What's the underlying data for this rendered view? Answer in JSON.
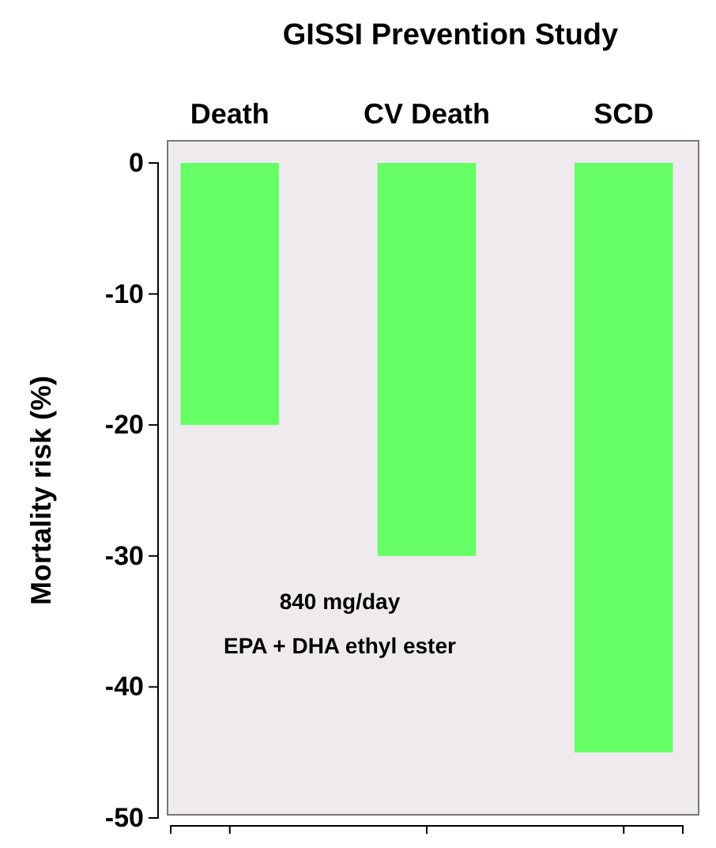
{
  "chart_data": {
    "type": "bar",
    "title": "GISSI Prevention Study",
    "ylabel": "Mortality risk (%)",
    "categories": [
      "Death",
      "CV Death",
      "SCD"
    ],
    "values": [
      -20,
      -30,
      -45
    ],
    "color": "#66ff66",
    "ylim": [
      -50,
      0
    ],
    "yticks": [
      -50,
      -40,
      -30,
      -20,
      -10,
      0
    ],
    "grid": false,
    "annotations": [
      "840 mg/day",
      "EPA + DHA  ethyl ester"
    ]
  }
}
